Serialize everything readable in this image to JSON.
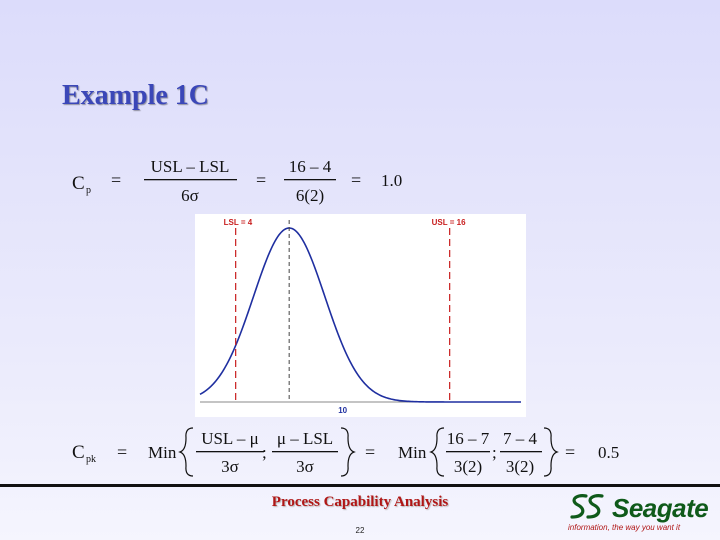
{
  "slide": {
    "title": "Example 1C",
    "footer_title": "Process Capability Analysis",
    "page_number": "22"
  },
  "formula_cp": {
    "lhs": "C",
    "lhs_sub": "p",
    "eq": "=",
    "num1": "USL – LSL",
    "den1": "6σ",
    "num2": "16 – 4",
    "den2": "6(2)",
    "result": "1.0"
  },
  "formula_cpk": {
    "lhs": "C",
    "lhs_sub": "pk",
    "eq": "=",
    "min": "Min",
    "num1": "USL – μ",
    "den1": "3σ",
    "num2": "μ – LSL",
    "den2": "3σ",
    "min2": "Min",
    "num3": "16 – 7",
    "den3": "3(2)",
    "num4": "7 – 4",
    "den4": "3(2)",
    "sep": ";",
    "result": "0.5"
  },
  "chart_data": {
    "type": "line",
    "series": [
      {
        "mean": 7,
        "sigma": 2
      }
    ],
    "xlim": [
      2,
      20
    ],
    "mean": 7,
    "sigma": 2,
    "x_tick_label": "10",
    "lsl": {
      "label": "LSL = 4",
      "value": 4
    },
    "usl": {
      "label": "USL = 16",
      "value": 16
    },
    "colors": {
      "curve": "#1f2fa0",
      "limit": "#c81e1e",
      "center": "#444444"
    }
  },
  "logo": {
    "word": "Seagate",
    "tagline": "information, the way you want it",
    "color": "#0f5a1a"
  }
}
